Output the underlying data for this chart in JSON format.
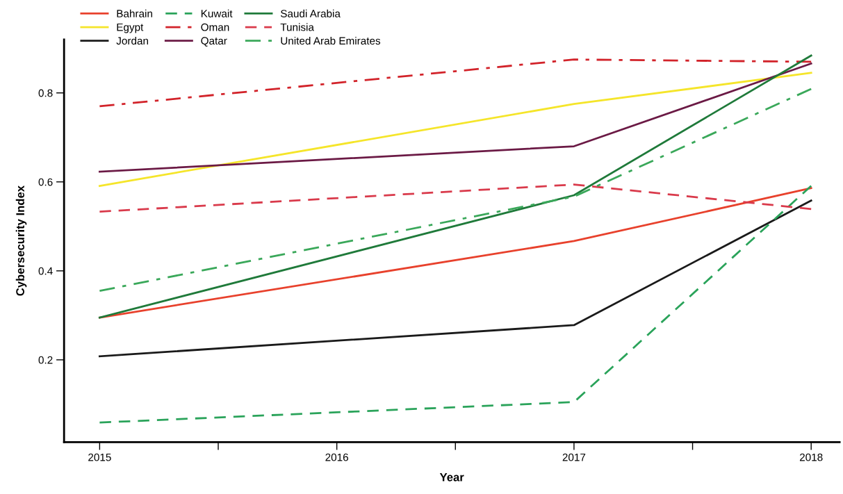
{
  "chart_data": {
    "type": "line",
    "xlabel": "Year",
    "ylabel": "Cybersecurity Index",
    "x": [
      2015,
      2017,
      2018
    ],
    "xlim": [
      2014.85,
      2018.12
    ],
    "ylim": [
      0.015,
      0.92
    ],
    "xticks": [
      2015,
      {
        "value": 2015.5,
        "label": null
      },
      2016,
      {
        "value": 2016.5,
        "label": null
      },
      2017,
      {
        "value": 2017.5,
        "label": null
      },
      2018
    ],
    "yticks": [
      0.2,
      0.4,
      0.6,
      0.8
    ],
    "grid": false,
    "legend": "top left",
    "marker": "none",
    "series": [
      {
        "name": "Bahrain",
        "color": "#e8412c",
        "line_style": "solid",
        "values": [
          0.295,
          0.467,
          0.586
        ]
      },
      {
        "name": "Egypt",
        "color": "#f5e52a",
        "line_style": "solid",
        "values": [
          0.591,
          0.775,
          0.845
        ]
      },
      {
        "name": "Jordan",
        "color": "#1a1a1a",
        "line_style": "solid",
        "values": [
          0.208,
          0.278,
          0.558
        ]
      },
      {
        "name": "Kuwait",
        "color": "#2aa35a",
        "line_style": "dashed",
        "values": [
          0.059,
          0.105,
          0.591
        ]
      },
      {
        "name": "Oman",
        "color": "#d2232a",
        "line_style": "dashdot",
        "values": [
          0.77,
          0.875,
          0.87
        ]
      },
      {
        "name": "Qatar",
        "color": "#6b1a45",
        "line_style": "solid",
        "values": [
          0.623,
          0.68,
          0.866
        ]
      },
      {
        "name": "Saudi Arabia",
        "color": "#1f7a3a",
        "line_style": "solid",
        "values": [
          0.295,
          0.57,
          0.884
        ]
      },
      {
        "name": "Tunisia",
        "color": "#d93a4b",
        "line_style": "dashed",
        "values": [
          0.533,
          0.594,
          0.539
        ]
      },
      {
        "name": "United Arab Emirates",
        "color": "#3aa85a",
        "line_style": "dashdot",
        "values": [
          0.355,
          0.567,
          0.809
        ]
      }
    ]
  }
}
